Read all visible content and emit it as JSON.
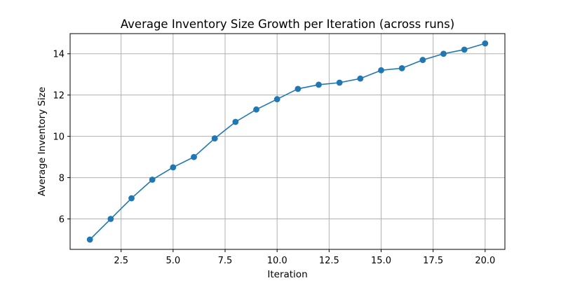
{
  "chart_data": {
    "type": "line",
    "title": "Average Inventory Size Growth per Iteration (across runs)",
    "xlabel": "Iteration",
    "ylabel": "Average Inventory Size",
    "xlim": [
      0.05,
      20.95
    ],
    "ylim": [
      4.525,
      14.975
    ],
    "xticks": [
      2.5,
      5.0,
      7.5,
      10.0,
      12.5,
      15.0,
      17.5,
      20.0
    ],
    "xtick_labels": [
      "2.5",
      "5.0",
      "7.5",
      "10.0",
      "12.5",
      "15.0",
      "17.5",
      "20.0"
    ],
    "yticks": [
      6,
      8,
      10,
      12,
      14
    ],
    "ytick_labels": [
      "6",
      "8",
      "10",
      "12",
      "14"
    ],
    "grid": true,
    "marker": "circle",
    "series": [
      {
        "color": "#1f77b4",
        "x": [
          1,
          2,
          3,
          4,
          5,
          6,
          7,
          8,
          9,
          10,
          11,
          12,
          13,
          14,
          15,
          16,
          17,
          18,
          19,
          20
        ],
        "values": [
          5.0,
          6.0,
          7.0,
          7.9,
          8.5,
          9.0,
          9.9,
          10.7,
          11.3,
          11.8,
          12.3,
          12.5,
          12.6,
          12.8,
          13.2,
          13.3,
          13.7,
          14.0,
          14.2,
          14.5
        ]
      }
    ]
  }
}
